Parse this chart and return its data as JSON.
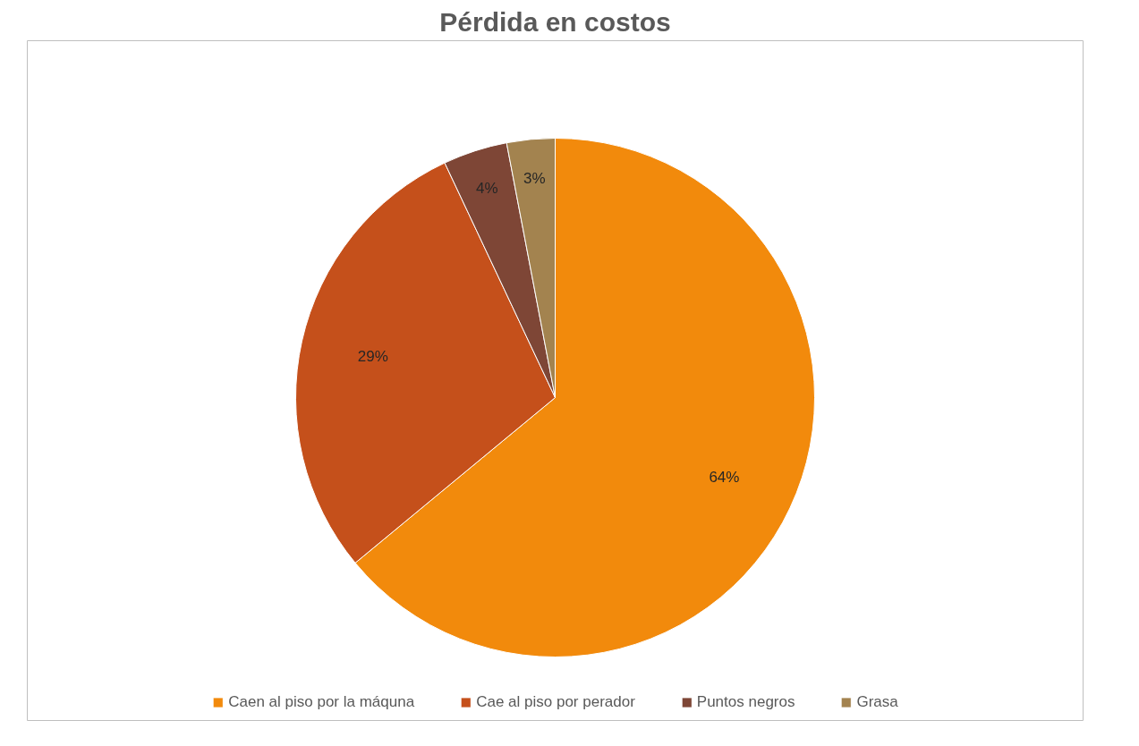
{
  "chart_data": {
    "type": "pie",
    "title": "Pérdida en costos",
    "categories": [
      "Caen al piso por la máquna",
      "Cae al piso por perador",
      "Puntos negros",
      "Grasa"
    ],
    "values": [
      64,
      29,
      4,
      3
    ],
    "colors": [
      "#f28a0c",
      "#c5501b",
      "#7e4636",
      "#a3834f"
    ],
    "value_labels": [
      "64%",
      "29%",
      "4%",
      "3%"
    ],
    "legend": "bottom"
  }
}
